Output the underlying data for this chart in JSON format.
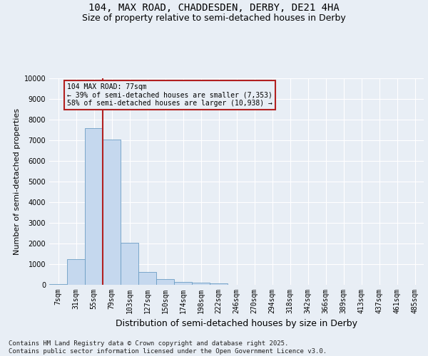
{
  "title_line1": "104, MAX ROAD, CHADDESDEN, DERBY, DE21 4HA",
  "title_line2": "Size of property relative to semi-detached houses in Derby",
  "xlabel": "Distribution of semi-detached houses by size in Derby",
  "ylabel": "Number of semi-detached properties",
  "footnote": "Contains HM Land Registry data © Crown copyright and database right 2025.\nContains public sector information licensed under the Open Government Licence v3.0.",
  "categories": [
    "7sqm",
    "31sqm",
    "55sqm",
    "79sqm",
    "103sqm",
    "127sqm",
    "150sqm",
    "174sqm",
    "198sqm",
    "222sqm",
    "246sqm",
    "270sqm",
    "294sqm",
    "318sqm",
    "342sqm",
    "366sqm",
    "389sqm",
    "413sqm",
    "437sqm",
    "461sqm",
    "485sqm"
  ],
  "values": [
    50,
    1250,
    7600,
    7050,
    2020,
    620,
    270,
    130,
    90,
    60,
    0,
    0,
    0,
    0,
    0,
    0,
    0,
    0,
    0,
    0,
    0
  ],
  "bar_color": "#c5d8ee",
  "bar_edge_color": "#6b9dc4",
  "vline_color": "#b22020",
  "vline_x_pos": 2.5,
  "annotation_title": "104 MAX ROAD: 77sqm",
  "annotation_line1": "← 39% of semi-detached houses are smaller (7,353)",
  "annotation_line2": "58% of semi-detached houses are larger (10,938) →",
  "annotation_box_edgecolor": "#b22020",
  "ylim": [
    0,
    10000
  ],
  "yticks": [
    0,
    1000,
    2000,
    3000,
    4000,
    5000,
    6000,
    7000,
    8000,
    9000,
    10000
  ],
  "bg_color": "#e8eef5",
  "plot_bg_color": "#e8eef5",
  "grid_color": "#ffffff",
  "title_fontsize": 10,
  "subtitle_fontsize": 9,
  "ylabel_fontsize": 8,
  "xlabel_fontsize": 9,
  "tick_fontsize": 7,
  "footnote_fontsize": 6.5
}
